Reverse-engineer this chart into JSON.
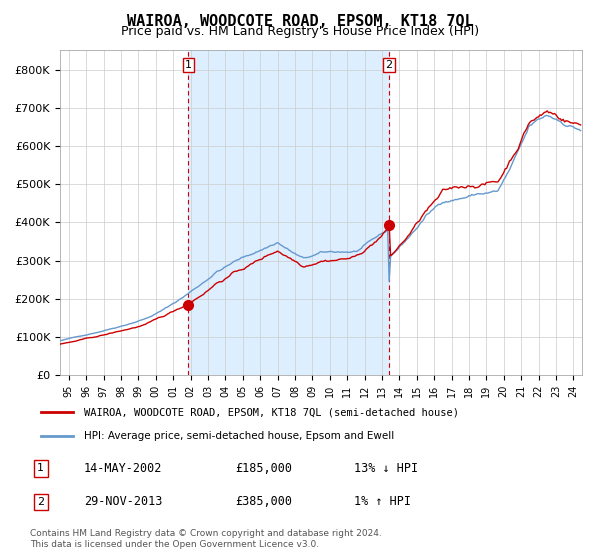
{
  "title": "WAIROA, WOODCOTE ROAD, EPSOM, KT18 7QL",
  "subtitle": "Price paid vs. HM Land Registry's House Price Index (HPI)",
  "legend_line1": "WAIROA, WOODCOTE ROAD, EPSOM, KT18 7QL (semi-detached house)",
  "legend_line2": "HPI: Average price, semi-detached house, Epsom and Ewell",
  "transaction1_date": "14-MAY-2002",
  "transaction1_price": "£185,000",
  "transaction1_hpi": "13% ↓ HPI",
  "transaction1_year": 2002.37,
  "transaction1_value": 185000,
  "transaction2_date": "29-NOV-2013",
  "transaction2_price": "£385,000",
  "transaction2_hpi": "1% ↑ HPI",
  "transaction2_year": 2013.91,
  "transaction2_value": 385000,
  "note": "Contains HM Land Registry data © Crown copyright and database right 2024.\nThis data is licensed under the Open Government Licence v3.0.",
  "red_color": "#cc0000",
  "blue_color": "#6699cc",
  "bg_shade": "#ddeeff",
  "ylim_min": 0,
  "ylim_max": 850000,
  "xmin": 1995.0,
  "xmax": 2025.0
}
